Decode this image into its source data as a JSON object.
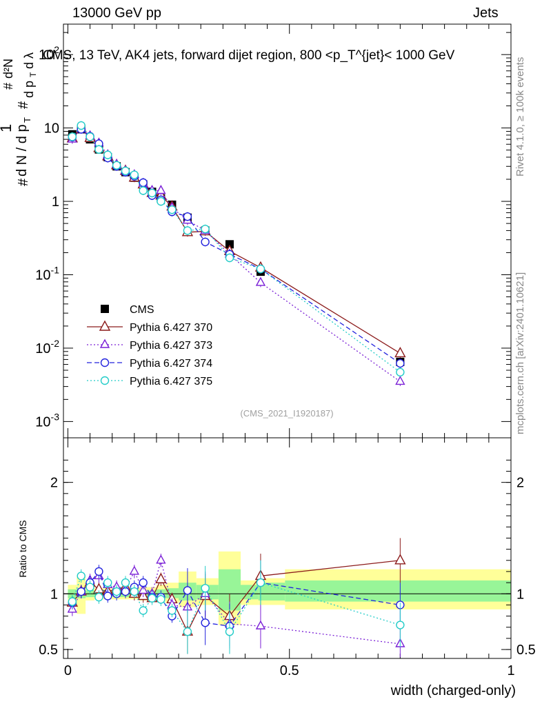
{
  "header": {
    "left": "13000 GeV pp",
    "right": "Jets"
  },
  "chart_data": [
    {
      "type": "scatter",
      "panel": "main",
      "title": "CMS, 13 TeV, AK4 jets, forward dijet region, 800 <p_T^{jet}< 1000 GeV",
      "ylabel": "1/dN/dp_T  d²N/dp_T dλ",
      "yscale": "log",
      "ylim": [
        0.0006,
        260
      ],
      "xlim": [
        -0.01,
        1.0
      ],
      "yticks": [
        "10^-3",
        "10^-2",
        "10^-1",
        "1",
        "10",
        "10^2"
      ],
      "analysis_id": "(CMS_2021_I1920187)",
      "series": [
        {
          "name": "CMS",
          "x": [
            0.01,
            0.03,
            0.05,
            0.07,
            0.09,
            0.11,
            0.13,
            0.15,
            0.17,
            0.19,
            0.21,
            0.235,
            0.27,
            0.31,
            0.365,
            0.435,
            0.75
          ],
          "y": [
            8.2,
            9.6,
            7.0,
            5.1,
            4.0,
            3.0,
            2.5,
            2.1,
            1.7,
            1.35,
            1.1,
            0.9,
            0.6,
            0.4,
            0.26,
            0.11,
            0.0065
          ]
        },
        {
          "name": "Pythia 6.427 370",
          "x": [
            0.01,
            0.03,
            0.05,
            0.07,
            0.09,
            0.11,
            0.13,
            0.15,
            0.17,
            0.19,
            0.21,
            0.235,
            0.27,
            0.31,
            0.365,
            0.435,
            0.75
          ],
          "y": [
            7.2,
            9.9,
            7.3,
            5.3,
            4.1,
            3.1,
            2.6,
            2.1,
            1.7,
            1.3,
            1.2,
            0.85,
            0.38,
            0.39,
            0.21,
            0.125,
            0.0085
          ]
        },
        {
          "name": "Pythia 6.427 373",
          "x": [
            0.01,
            0.03,
            0.05,
            0.07,
            0.09,
            0.11,
            0.13,
            0.15,
            0.17,
            0.19,
            0.21,
            0.235,
            0.27,
            0.31,
            0.365,
            0.435,
            0.75
          ],
          "y": [
            7.0,
            9.8,
            7.8,
            6.2,
            4.3,
            3.2,
            2.6,
            2.3,
            1.75,
            1.4,
            1.4,
            0.82,
            0.55,
            0.4,
            0.19,
            0.078,
            0.0035
          ]
        },
        {
          "name": "Pythia 6.427 374",
          "x": [
            0.01,
            0.03,
            0.05,
            0.07,
            0.09,
            0.11,
            0.13,
            0.15,
            0.17,
            0.19,
            0.21,
            0.235,
            0.27,
            0.31,
            0.365,
            0.435,
            0.75
          ],
          "y": [
            7.5,
            9.6,
            7.7,
            6.1,
            3.9,
            3.0,
            2.5,
            2.2,
            1.8,
            1.2,
            1.05,
            0.72,
            0.62,
            0.28,
            0.19,
            0.12,
            0.0062
          ]
        },
        {
          "name": "Pythia 6.427 375",
          "x": [
            0.01,
            0.03,
            0.05,
            0.07,
            0.09,
            0.11,
            0.13,
            0.15,
            0.17,
            0.19,
            0.21,
            0.235,
            0.27,
            0.31,
            0.365,
            0.435,
            0.75
          ],
          "y": [
            7.6,
            10.8,
            7.6,
            5.1,
            4.3,
            3.1,
            2.6,
            2.3,
            1.4,
            1.3,
            1.0,
            0.77,
            0.4,
            0.42,
            0.17,
            0.12,
            0.0047
          ]
        }
      ]
    },
    {
      "type": "scatter",
      "panel": "ratio",
      "ylabel": "Ratio to CMS",
      "xlabel": "width (charged-only)",
      "ylim": [
        0.42,
        2.4
      ],
      "xlim": [
        -0.01,
        1.0
      ],
      "xticks": [
        "0",
        "0.5",
        "1"
      ],
      "yticks": [
        "0.5",
        "1",
        "2"
      ],
      "series": [
        {
          "name": "Pythia 6.427 370",
          "x": [
            0.01,
            0.03,
            0.05,
            0.07,
            0.09,
            0.11,
            0.13,
            0.15,
            0.17,
            0.19,
            0.21,
            0.235,
            0.27,
            0.31,
            0.365,
            0.435,
            0.75
          ],
          "y": [
            0.92,
            1.02,
            1.1,
            1.04,
            1.02,
            1.04,
            1.06,
            1.0,
            0.98,
            0.96,
            1.13,
            0.95,
            0.66,
            0.98,
            0.8,
            1.16,
            1.3
          ]
        },
        {
          "name": "Pythia 6.427 373",
          "x": [
            0.01,
            0.03,
            0.05,
            0.07,
            0.09,
            0.11,
            0.13,
            0.15,
            0.17,
            0.19,
            0.21,
            0.235,
            0.27,
            0.31,
            0.365,
            0.435,
            0.75
          ],
          "y": [
            0.86,
            1.02,
            1.12,
            1.16,
            1.08,
            1.06,
            1.04,
            1.2,
            1.03,
            1.0,
            1.3,
            0.9,
            0.88,
            1.0,
            0.73,
            0.71,
            0.55
          ]
        },
        {
          "name": "Pythia 6.427 374",
          "x": [
            0.01,
            0.03,
            0.05,
            0.07,
            0.09,
            0.11,
            0.13,
            0.15,
            0.17,
            0.19,
            0.21,
            0.235,
            0.27,
            0.31,
            0.365,
            0.435,
            0.75
          ],
          "y": [
            0.92,
            1.02,
            1.1,
            1.2,
            0.98,
            1.0,
            1.02,
            1.06,
            1.1,
            0.97,
            0.97,
            0.8,
            1.03,
            0.74,
            0.71,
            1.1,
            0.9
          ]
        },
        {
          "name": "Pythia 6.427 375",
          "x": [
            0.01,
            0.03,
            0.05,
            0.07,
            0.09,
            0.11,
            0.13,
            0.15,
            0.17,
            0.19,
            0.21,
            0.235,
            0.27,
            0.31,
            0.365,
            0.435,
            0.75
          ],
          "y": [
            0.93,
            1.16,
            1.06,
            0.97,
            1.1,
            1.02,
            1.1,
            1.02,
            0.85,
            0.96,
            0.95,
            0.85,
            0.66,
            1.05,
            0.66,
            1.1,
            0.72
          ]
        }
      ]
    }
  ],
  "legend": [
    {
      "label": "CMS",
      "color": "#000000",
      "marker": "square"
    },
    {
      "label": "Pythia 6.427 370",
      "color": "#8b1a1a",
      "marker": "triangle"
    },
    {
      "label": "Pythia 6.427 373",
      "color": "#7a1fd6",
      "marker": "triangle-small"
    },
    {
      "label": "Pythia 6.427 374",
      "color": "#2222dd",
      "marker": "circle"
    },
    {
      "label": "Pythia 6.427 375",
      "color": "#22ccc8",
      "marker": "circle"
    }
  ],
  "side_labels": {
    "rivet": "Rivet 4.1.0, ≥ 100k events",
    "mcplots": "mcplots.cern.ch [arXiv:2401.10621]"
  },
  "colors": {
    "band_inner": "#98f598",
    "band_outer": "#ffff99"
  }
}
